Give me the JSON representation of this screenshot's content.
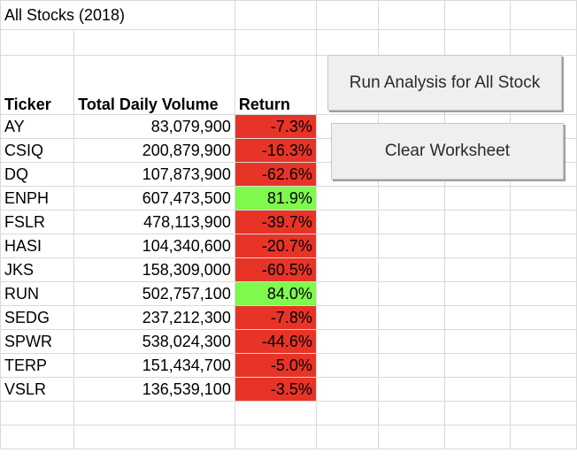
{
  "title": "All Stocks (2018)",
  "headers": {
    "ticker": "Ticker",
    "volume": "Total Daily Volume",
    "return": "Return"
  },
  "rows": [
    {
      "ticker": "AY",
      "volume": "83,079,900",
      "return": "-7.3%",
      "status": "negative"
    },
    {
      "ticker": "CSIQ",
      "volume": "200,879,900",
      "return": "-16.3%",
      "status": "negative"
    },
    {
      "ticker": "DQ",
      "volume": "107,873,900",
      "return": "-62.6%",
      "status": "negative"
    },
    {
      "ticker": "ENPH",
      "volume": "607,473,500",
      "return": "81.9%",
      "status": "positive"
    },
    {
      "ticker": "FSLR",
      "volume": "478,113,900",
      "return": "-39.7%",
      "status": "negative"
    },
    {
      "ticker": "HASI",
      "volume": "104,340,600",
      "return": "-20.7%",
      "status": "negative"
    },
    {
      "ticker": "JKS",
      "volume": "158,309,000",
      "return": "-60.5%",
      "status": "negative"
    },
    {
      "ticker": "RUN",
      "volume": "502,757,100",
      "return": "84.0%",
      "status": "positive"
    },
    {
      "ticker": "SEDG",
      "volume": "237,212,300",
      "return": "-7.8%",
      "status": "negative"
    },
    {
      "ticker": "SPWR",
      "volume": "538,024,300",
      "return": "-44.6%",
      "status": "negative"
    },
    {
      "ticker": "TERP",
      "volume": "151,434,700",
      "return": "-5.0%",
      "status": "negative"
    },
    {
      "ticker": "VSLR",
      "volume": "136,539,100",
      "return": "-3.5%",
      "status": "negative"
    }
  ],
  "buttons": {
    "run_analysis": "Run Analysis for  All Stock",
    "clear_worksheet": "Clear Worksheet"
  },
  "colors": {
    "positive": "#7ef94c",
    "negative": "#e73427",
    "gridline": "#d9d9d9",
    "button_bg": "#efefef"
  }
}
